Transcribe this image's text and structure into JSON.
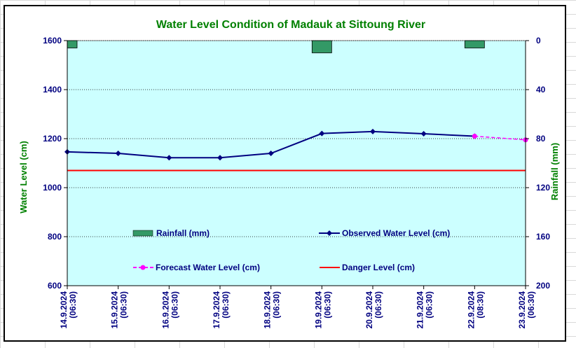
{
  "colors": {
    "plot_bg": "#ccffff",
    "title": "#008000",
    "axis_text": "#000080",
    "rainfall_fill": "#339966",
    "observed": "#000080",
    "forecast": "#ff00ff",
    "danger": "#ff0000"
  },
  "chart_data": {
    "type": "line",
    "title": "Water Level Condition of Madauk at Sittoung River",
    "ylabel": "Water Level (cm)",
    "y2label": "Rainfall (mm)",
    "ylim": [
      600,
      1600
    ],
    "y2lim": [
      0,
      200
    ],
    "y2_inverted": true,
    "yticks": [
      "600",
      "800",
      "1000",
      "1200",
      "1400",
      "1600"
    ],
    "y2ticks": [
      "0",
      "40",
      "80",
      "120",
      "160",
      "200"
    ],
    "grid": "horizontal dotted",
    "categories": [
      [
        "14.9.2024",
        "(06:30)"
      ],
      [
        "15.9.2024",
        "(06:30)"
      ],
      [
        "16.9.2024",
        "(06:30)"
      ],
      [
        "17.9.2024",
        "(06:30)"
      ],
      [
        "18.9.2024",
        "(06:30)"
      ],
      [
        "19.9.2024",
        "(06:30)"
      ],
      [
        "20.9.2024",
        "(06:30)"
      ],
      [
        "21.9.2024",
        "(06:30)"
      ],
      [
        "22.9.2024",
        "(08:30)"
      ],
      [
        "23.9.2024",
        "(06:30)"
      ]
    ],
    "series": [
      {
        "name": "Rainfall (mm)",
        "kind": "bar",
        "axis": "right",
        "values": [
          6,
          0,
          0,
          0,
          0,
          10,
          0,
          0,
          6,
          null
        ]
      },
      {
        "name": "Observed Water Level (cm)",
        "kind": "line",
        "marker": "diamond",
        "axis": "left",
        "values": [
          1146,
          1140,
          1122,
          1122,
          1140,
          1221,
          1229,
          1220,
          1210,
          null
        ]
      },
      {
        "name": "Forecast Water Level (cm)",
        "kind": "line",
        "style": "dashed",
        "marker": "circle",
        "axis": "left",
        "values": [
          null,
          null,
          null,
          null,
          null,
          null,
          null,
          null,
          1210,
          1195
        ]
      },
      {
        "name": "Danger Level (cm)",
        "kind": "constant",
        "axis": "left",
        "value": 1070
      }
    ],
    "legend": "inside plot, middle"
  }
}
